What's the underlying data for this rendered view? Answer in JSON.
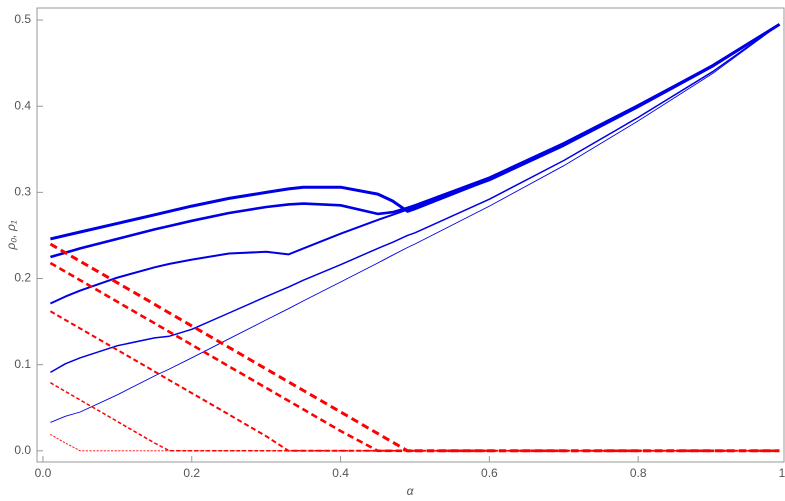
{
  "chart_data": {
    "type": "line",
    "x_label": "α",
    "y_label": "ρ₀, ρ₁",
    "x": [
      0.01,
      0.03,
      0.05,
      0.1,
      0.15,
      0.17,
      0.2,
      0.25,
      0.3,
      0.33,
      0.35,
      0.4,
      0.45,
      0.47,
      0.49,
      0.5,
      0.6,
      0.7,
      0.8,
      0.9,
      0.99
    ],
    "xlim": [
      -0.008,
      0.996
    ],
    "ylim": [
      -0.013,
      0.514
    ],
    "xticks": [
      {
        "value": 0,
        "label": "0.0"
      },
      0.2,
      0.4,
      0.6,
      0.8,
      {
        "value": 1,
        "label": "1.0"
      }
    ],
    "yticks": [
      {
        "value": 0,
        "label": "0.0"
      },
      0.1,
      0.2,
      0.3,
      0.4,
      0.5
    ],
    "series": [
      {
        "color": "#0000e6",
        "line_width": 3,
        "dashed": false,
        "values": [
          0.246,
          0.25,
          0.254,
          0.264,
          0.274,
          0.278,
          0.284,
          0.293,
          0.3,
          0.304,
          0.306,
          0.306,
          0.298,
          0.29,
          0.278,
          0.281,
          0.315,
          0.356,
          0.4,
          0.447,
          0.495
        ]
      },
      {
        "color": "#0000e6",
        "line_width": 2.6,
        "dashed": false,
        "values": [
          0.225,
          0.23,
          0.235,
          0.246,
          0.257,
          0.261,
          0.267,
          0.276,
          0.283,
          0.286,
          0.287,
          0.285,
          0.275,
          0.277,
          0.282,
          0.285,
          0.317,
          0.357,
          0.401,
          0.447,
          0.495
        ]
      },
      {
        "color": "#0000e6",
        "line_width": 2,
        "dashed": false,
        "values": [
          0.171,
          0.179,
          0.186,
          0.201,
          0.213,
          0.217,
          0.222,
          0.229,
          0.231,
          0.228,
          0.235,
          0.252,
          0.268,
          0.274,
          0.28,
          0.283,
          0.314,
          0.354,
          0.399,
          0.446,
          0.495
        ]
      },
      {
        "color": "#0000e6",
        "line_width": 1.5,
        "dashed": false,
        "values": [
          0.091,
          0.101,
          0.108,
          0.122,
          0.131,
          0.133,
          0.141,
          0.16,
          0.179,
          0.19,
          0.198,
          0.216,
          0.235,
          0.242,
          0.25,
          0.253,
          0.292,
          0.337,
          0.387,
          0.44,
          0.495
        ]
      },
      {
        "color": "#0000e6",
        "line_width": 0.9,
        "dashed": false,
        "values": [
          0.033,
          0.04,
          0.045,
          0.065,
          0.087,
          0.095,
          0.108,
          0.13,
          0.152,
          0.165,
          0.174,
          0.196,
          0.218,
          0.227,
          0.236,
          0.24,
          0.284,
          0.331,
          0.383,
          0.438,
          0.495
        ]
      },
      {
        "color": "#ff0000",
        "line_width": 3,
        "dashed": true,
        "values": [
          0.24,
          0.23,
          0.22,
          0.195,
          0.17,
          0.16,
          0.145,
          0.12,
          0.095,
          0.08,
          0.07,
          0.045,
          0.02,
          0.01,
          0,
          0,
          0,
          0,
          0,
          0,
          0
        ]
      },
      {
        "color": "#ff0000",
        "line_width": 2.6,
        "dashed": true,
        "values": [
          0.218,
          0.208,
          0.198,
          0.173,
          0.148,
          0.138,
          0.123,
          0.098,
          0.073,
          0.058,
          0.048,
          0.023,
          0,
          0,
          0,
          0,
          0,
          0,
          0,
          0,
          0
        ]
      },
      {
        "color": "#ff0000",
        "line_width": 2,
        "dashed": true,
        "values": [
          0.162,
          0.152,
          0.142,
          0.117,
          0.092,
          0.082,
          0.067,
          0.042,
          0.017,
          0,
          0,
          0,
          0,
          0,
          0,
          0,
          0,
          0,
          0,
          0,
          0
        ]
      },
      {
        "color": "#ff0000",
        "line_width": 1.5,
        "dashed": true,
        "values": [
          0.079,
          0.069,
          0.059,
          0.034,
          0.009,
          0,
          0,
          0,
          0,
          0,
          0,
          0,
          0,
          0,
          0,
          0,
          0,
          0,
          0,
          0,
          0
        ]
      },
      {
        "color": "#ff0000",
        "line_width": 0.9,
        "dashed": true,
        "values": [
          0.019,
          0.009,
          0,
          0,
          0,
          0,
          0,
          0,
          0,
          0,
          0,
          0,
          0,
          0,
          0,
          0,
          0,
          0,
          0,
          0,
          0
        ]
      }
    ]
  }
}
